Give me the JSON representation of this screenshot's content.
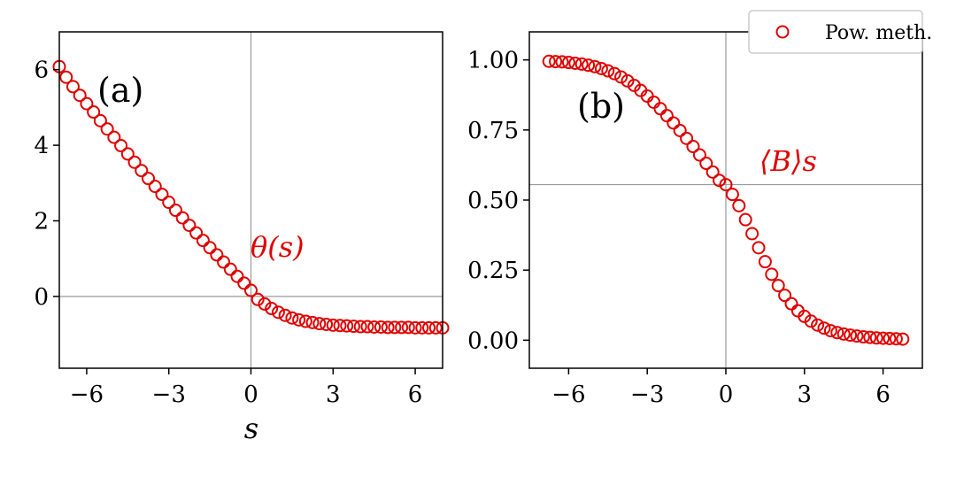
{
  "legend": {
    "label": "Pow. meth.",
    "marker_color": "#e00000"
  },
  "chart_data": [
    {
      "type": "scatter",
      "panel_label": "(a)",
      "annotation": "θ(s)",
      "xlabel": "s",
      "ylabel": "",
      "xlim": [
        -7,
        7
      ],
      "ylim": [
        -1.9,
        7.0
      ],
      "xticks": [
        -6,
        -3,
        0,
        3,
        6
      ],
      "xtick_labels": [
        "−6",
        "−3",
        "0",
        "3",
        "6"
      ],
      "yticks": [
        0,
        2,
        4,
        6
      ],
      "ytick_labels": [
        "0",
        "2",
        "4",
        "6"
      ],
      "hline": 0,
      "vline": 0,
      "marker_color": "#e00000",
      "series": [
        {
          "name": "Pow. meth.",
          "x": [
            -7.0,
            -6.75,
            -6.5,
            -6.25,
            -6.0,
            -5.75,
            -5.5,
            -5.25,
            -5.0,
            -4.75,
            -4.5,
            -4.25,
            -4.0,
            -3.75,
            -3.5,
            -3.25,
            -3.0,
            -2.75,
            -2.5,
            -2.25,
            -2.0,
            -1.75,
            -1.5,
            -1.25,
            -1.0,
            -0.75,
            -0.5,
            -0.25,
            0.0,
            0.25,
            0.5,
            0.75,
            1.0,
            1.25,
            1.5,
            1.75,
            2.0,
            2.25,
            2.5,
            2.75,
            3.0,
            3.25,
            3.5,
            3.75,
            4.0,
            4.25,
            4.5,
            4.75,
            5.0,
            5.25,
            5.5,
            5.75,
            6.0,
            6.25,
            6.5,
            6.75,
            7.0
          ],
          "y": [
            6.08,
            5.8,
            5.55,
            5.32,
            5.1,
            4.88,
            4.65,
            4.43,
            4.21,
            3.99,
            3.77,
            3.55,
            3.33,
            3.12,
            2.91,
            2.7,
            2.49,
            2.28,
            2.08,
            1.88,
            1.68,
            1.48,
            1.29,
            1.1,
            0.91,
            0.72,
            0.53,
            0.35,
            0.16,
            -0.08,
            -0.2,
            -0.32,
            -0.42,
            -0.5,
            -0.57,
            -0.62,
            -0.66,
            -0.69,
            -0.72,
            -0.74,
            -0.76,
            -0.77,
            -0.78,
            -0.79,
            -0.8,
            -0.8,
            -0.81,
            -0.81,
            -0.82,
            -0.82,
            -0.82,
            -0.82,
            -0.83,
            -0.83,
            -0.83,
            -0.83,
            -0.83
          ]
        }
      ]
    },
    {
      "type": "scatter",
      "panel_label": "(b)",
      "annotation": "⟨B⟩s",
      "xlabel": "",
      "ylabel": "",
      "xlim": [
        -7.5,
        7.5
      ],
      "ylim": [
        -0.1,
        1.1
      ],
      "xticks": [
        -6,
        -3,
        0,
        3,
        6
      ],
      "xtick_labels": [
        "−6",
        "−3",
        "0",
        "3",
        "6"
      ],
      "yticks": [
        0.0,
        0.25,
        0.5,
        0.75,
        1.0
      ],
      "ytick_labels": [
        "0.00",
        "0.25",
        "0.50",
        "0.75",
        "1.00"
      ],
      "hline": 0.555,
      "vline": 0,
      "marker_color": "#e00000",
      "series": [
        {
          "name": "Pow. meth.",
          "x": [
            -6.75,
            -6.5,
            -6.25,
            -6.0,
            -5.75,
            -5.5,
            -5.25,
            -5.0,
            -4.75,
            -4.5,
            -4.25,
            -4.0,
            -3.75,
            -3.5,
            -3.25,
            -3.0,
            -2.75,
            -2.5,
            -2.25,
            -2.0,
            -1.75,
            -1.5,
            -1.25,
            -1.0,
            -0.75,
            -0.5,
            -0.25,
            0.0,
            0.25,
            0.5,
            0.75,
            1.0,
            1.25,
            1.5,
            1.75,
            2.0,
            2.25,
            2.5,
            2.75,
            3.0,
            3.25,
            3.5,
            3.75,
            4.0,
            4.25,
            4.5,
            4.75,
            5.0,
            5.25,
            5.5,
            5.75,
            6.0,
            6.25,
            6.5,
            6.75
          ],
          "y": [
            0.995,
            0.994,
            0.993,
            0.991,
            0.988,
            0.985,
            0.981,
            0.976,
            0.969,
            0.961,
            0.951,
            0.939,
            0.925,
            0.909,
            0.891,
            0.871,
            0.849,
            0.826,
            0.801,
            0.775,
            0.748,
            0.72,
            0.691,
            0.661,
            0.631,
            0.6,
            0.57,
            0.555,
            0.52,
            0.48,
            0.43,
            0.38,
            0.33,
            0.28,
            0.235,
            0.195,
            0.16,
            0.13,
            0.105,
            0.085,
            0.068,
            0.054,
            0.043,
            0.034,
            0.027,
            0.022,
            0.018,
            0.015,
            0.012,
            0.01,
            0.008,
            0.007,
            0.006,
            0.005,
            0.004
          ]
        }
      ]
    }
  ]
}
